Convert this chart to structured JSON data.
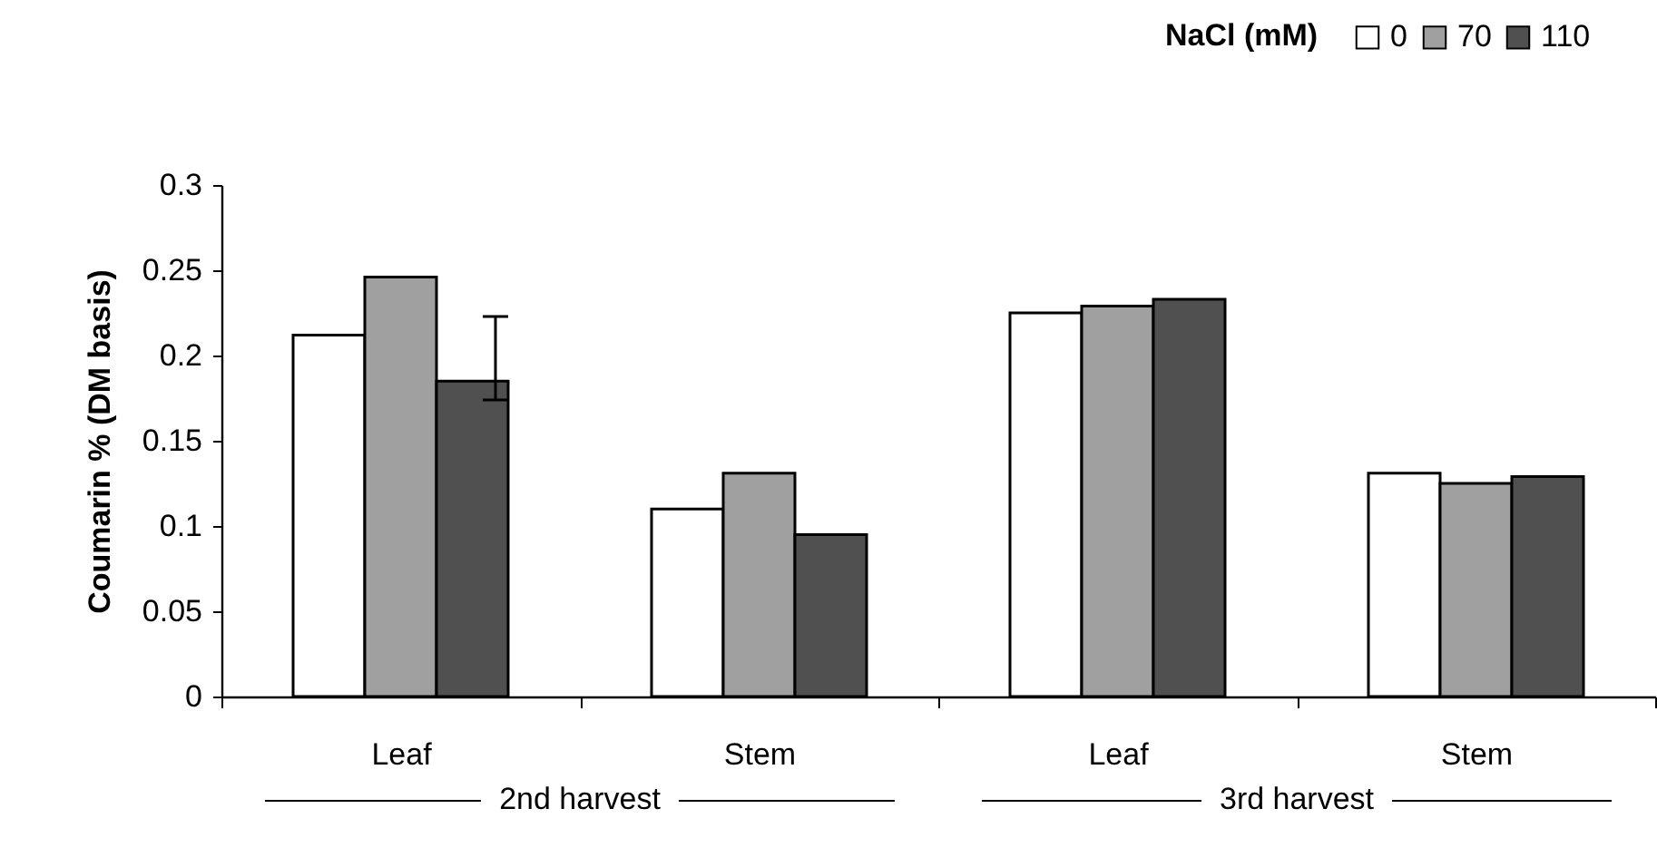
{
  "chart_data": {
    "type": "bar",
    "ylabel": "Coumarin % (DM basis)",
    "legend_title": "NaCl (mM)",
    "categories": [
      "Leaf",
      "Stem",
      "Leaf",
      "Stem"
    ],
    "annotations": [
      "2nd harvest",
      "3rd harvest"
    ],
    "series": [
      {
        "name": "0",
        "color": "#ffffff",
        "values": [
          0.212,
          0.11,
          0.225,
          0.131
        ]
      },
      {
        "name": "70",
        "color": "#a0a0a0",
        "values": [
          0.246,
          0.131,
          0.229,
          0.125
        ]
      },
      {
        "name": "110",
        "color": "#505050",
        "values": [
          0.185,
          0.095,
          0.233,
          0.129
        ]
      }
    ],
    "ylim": [
      0,
      0.3
    ],
    "yticks": [
      0,
      0.05,
      0.1,
      0.15,
      0.2,
      0.25,
      0.3
    ],
    "grid": false,
    "legend": "top right"
  }
}
